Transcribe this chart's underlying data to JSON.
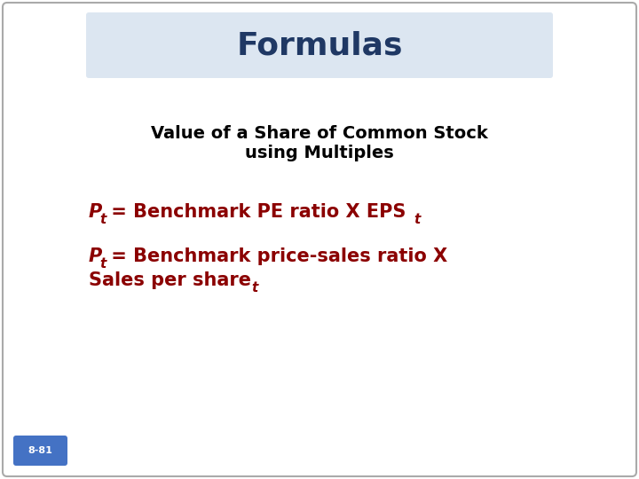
{
  "title": "Formulas",
  "title_color": "#1F3864",
  "title_bg_color": "#DCE6F1",
  "subtitle_line1": "Value of a Share of Common Stock",
  "subtitle_line2": "using Multiples",
  "subtitle_color": "#000000",
  "formula_color": "#8B0000",
  "page_label": "8-81",
  "page_label_color": "#FFFFFF",
  "page_label_bg": "#4472C4",
  "bg_color": "#FFFFFF",
  "border_color": "#AAAAAA",
  "title_fontsize": 26,
  "subtitle_fontsize": 14,
  "formula_fontsize": 15,
  "sub_fontsize": 11
}
